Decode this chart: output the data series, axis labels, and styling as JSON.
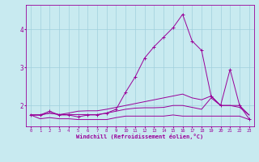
{
  "xlabel": "Windchill (Refroidissement éolien,°C)",
  "bg_color": "#c8eaf0",
  "line_color": "#990099",
  "grid_color": "#a0d0dc",
  "xlim": [
    -0.5,
    23.5
  ],
  "ylim": [
    1.45,
    4.65
  ],
  "yticks": [
    2,
    3,
    4
  ],
  "xticks": [
    0,
    1,
    2,
    3,
    4,
    5,
    6,
    7,
    8,
    9,
    10,
    11,
    12,
    13,
    14,
    15,
    16,
    17,
    18,
    19,
    20,
    21,
    22,
    23
  ],
  "series": [
    [
      1.75,
      1.75,
      1.85,
      1.75,
      1.75,
      1.7,
      1.75,
      1.75,
      1.8,
      1.9,
      2.35,
      2.75,
      3.25,
      3.55,
      3.8,
      4.05,
      4.4,
      3.7,
      3.45,
      2.25,
      2.0,
      2.95,
      2.0,
      1.65
    ],
    [
      1.75,
      1.65,
      1.68,
      1.65,
      1.65,
      1.63,
      1.63,
      1.63,
      1.63,
      1.68,
      1.72,
      1.72,
      1.72,
      1.72,
      1.72,
      1.75,
      1.72,
      1.72,
      1.72,
      1.72,
      1.72,
      1.72,
      1.72,
      1.63
    ],
    [
      1.75,
      1.75,
      1.8,
      1.76,
      1.8,
      1.85,
      1.86,
      1.86,
      1.9,
      1.95,
      2.0,
      2.05,
      2.1,
      2.15,
      2.2,
      2.25,
      2.3,
      2.2,
      2.15,
      2.25,
      2.0,
      2.0,
      2.0,
      1.75
    ],
    [
      1.75,
      1.75,
      1.8,
      1.76,
      1.76,
      1.76,
      1.76,
      1.76,
      1.8,
      1.85,
      1.9,
      1.93,
      1.94,
      1.94,
      1.95,
      2.0,
      2.0,
      1.95,
      1.9,
      2.2,
      2.0,
      2.0,
      1.95,
      1.75
    ]
  ],
  "marker_series": [
    0
  ]
}
